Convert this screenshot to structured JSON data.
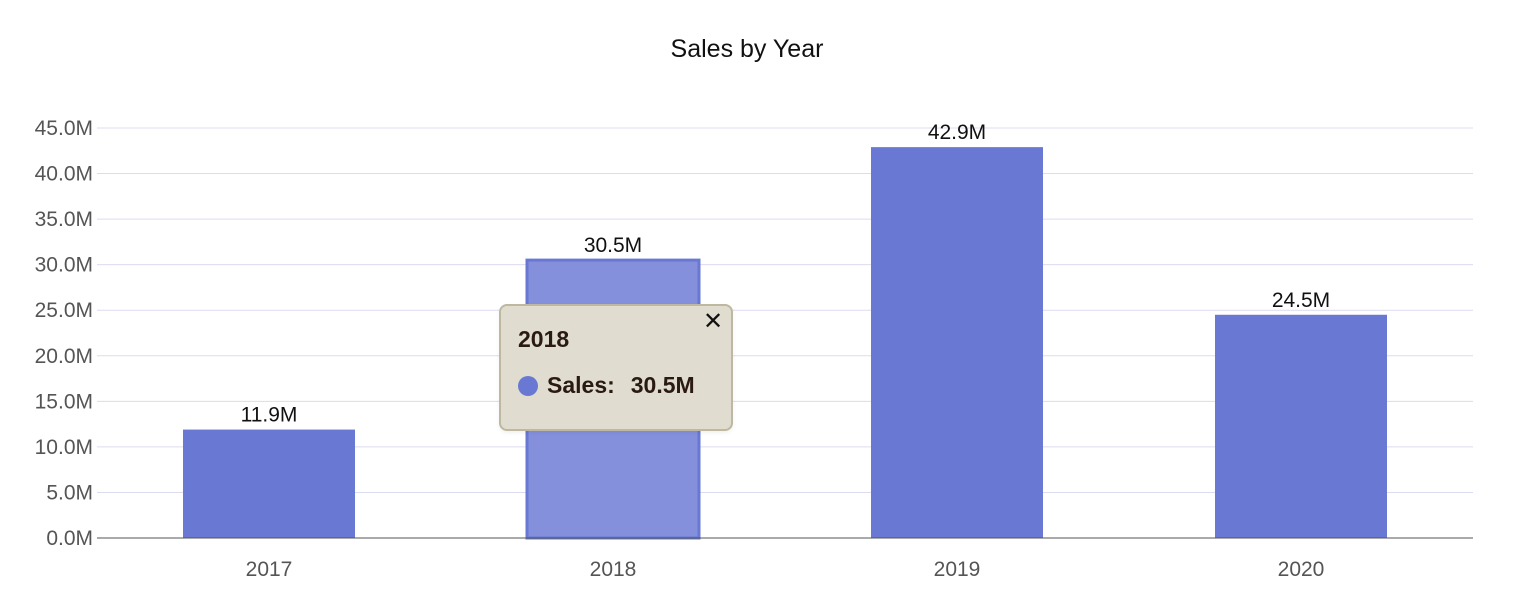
{
  "chart_data": {
    "type": "bar",
    "title": "Sales by Year",
    "xlabel": "",
    "ylabel": "",
    "categories": [
      "2017",
      "2018",
      "2019",
      "2020"
    ],
    "series": [
      {
        "name": "Sales",
        "values": [
          11.9,
          30.5,
          42.9,
          24.5
        ],
        "value_labels": [
          "11.9M",
          "30.5M",
          "42.9M",
          "24.5M"
        ],
        "color": "#6878d3"
      }
    ],
    "highlighted_category": "2018",
    "highlight_color": "#8590dd",
    "ylim": [
      0,
      45
    ],
    "y_ticks": [
      0,
      5,
      10,
      15,
      20,
      25,
      30,
      35,
      40,
      45
    ],
    "y_tick_labels": [
      "0.0M",
      "5.0M",
      "10.0M",
      "15.0M",
      "20.0M",
      "25.0M",
      "30.0M",
      "35.0M",
      "40.0M",
      "45.0M"
    ],
    "grid": true,
    "grid_color": "#dcdcf0",
    "legend": "none"
  },
  "tooltip": {
    "title": "2018",
    "series_label": "Sales:",
    "value": "30.5M",
    "close_glyph": "✕",
    "background": "#e0ddd0",
    "border_color": "#bdb89f",
    "swatch_color": "#6878d3"
  }
}
